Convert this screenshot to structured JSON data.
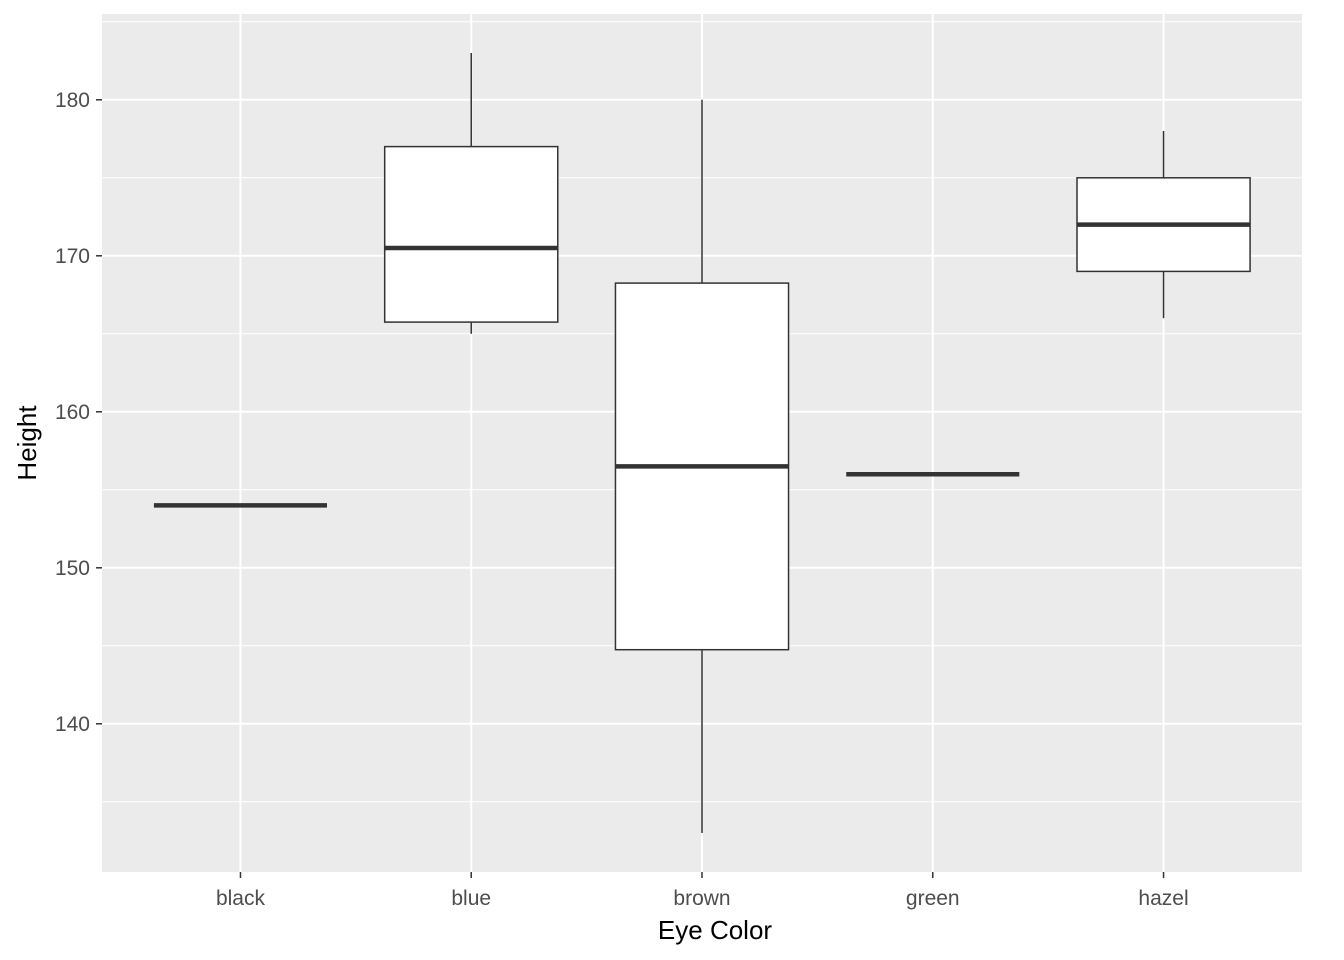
{
  "chart_data": {
    "type": "box",
    "xlabel": "Eye Color",
    "ylabel": "Height",
    "categories": [
      "black",
      "blue",
      "brown",
      "green",
      "hazel"
    ],
    "boxes": [
      {
        "category": "black",
        "min": 154,
        "q1": 154,
        "median": 154,
        "q3": 154,
        "max": 154
      },
      {
        "category": "blue",
        "min": 165,
        "q1": 165.75,
        "median": 170.5,
        "q3": 177,
        "max": 183
      },
      {
        "category": "brown",
        "min": 133,
        "q1": 144.75,
        "median": 156.5,
        "q3": 168.25,
        "max": 180
      },
      {
        "category": "green",
        "min": 156,
        "q1": 156,
        "median": 156,
        "q3": 156,
        "max": 156
      },
      {
        "category": "hazel",
        "min": 166,
        "q1": 169,
        "median": 172,
        "q3": 175,
        "max": 178
      }
    ],
    "yticks": [
      140,
      150,
      160,
      170,
      180
    ],
    "ylim": [
      130.5,
      185.5
    ],
    "grid": true,
    "colors": {
      "panel_background": "#ebebeb",
      "grid": "#ffffff",
      "box_fill": "#ffffff",
      "box_stroke": "#333333"
    }
  }
}
